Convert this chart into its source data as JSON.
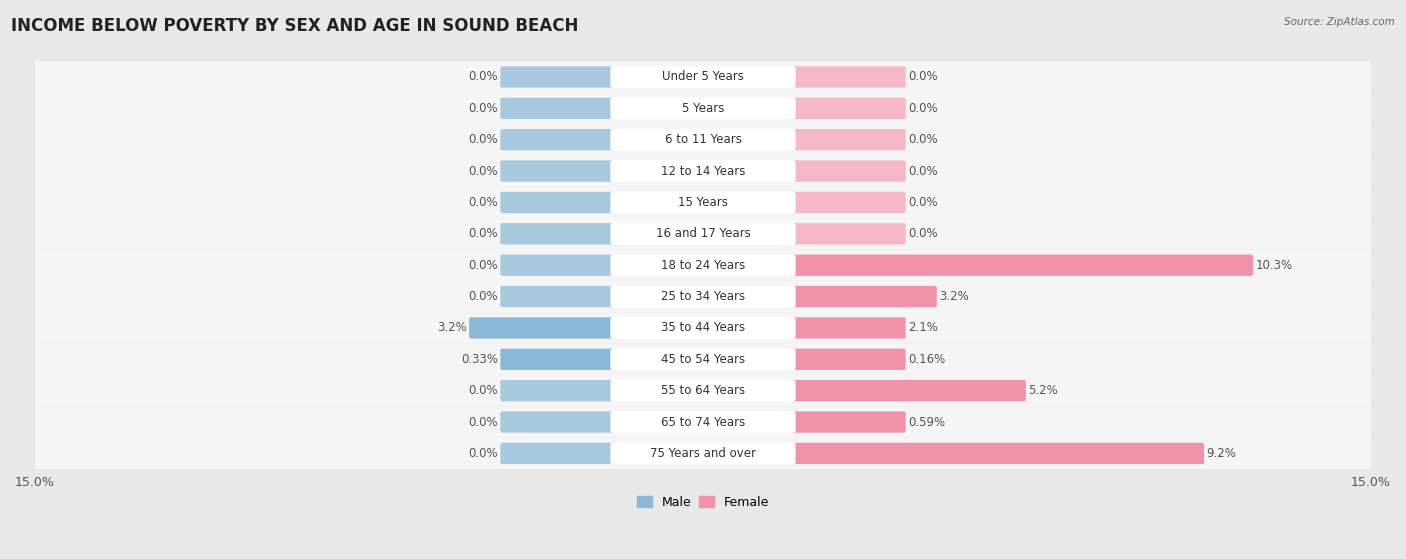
{
  "title": "INCOME BELOW POVERTY BY SEX AND AGE IN SOUND BEACH",
  "source": "Source: ZipAtlas.com",
  "categories": [
    "Under 5 Years",
    "5 Years",
    "6 to 11 Years",
    "12 to 14 Years",
    "15 Years",
    "16 and 17 Years",
    "18 to 24 Years",
    "25 to 34 Years",
    "35 to 44 Years",
    "45 to 54 Years",
    "55 to 64 Years",
    "65 to 74 Years",
    "75 Years and over"
  ],
  "male": [
    0.0,
    0.0,
    0.0,
    0.0,
    0.0,
    0.0,
    0.0,
    0.0,
    3.2,
    0.33,
    0.0,
    0.0,
    0.0
  ],
  "female": [
    0.0,
    0.0,
    0.0,
    0.0,
    0.0,
    0.0,
    10.3,
    3.2,
    2.1,
    0.16,
    5.2,
    0.59,
    9.2
  ],
  "male_color": "#89b8d8",
  "female_color": "#f093a8",
  "male_color_light": "#a8c8e0",
  "female_color_light": "#f4b8c8",
  "background_color": "#e8e8e8",
  "row_bg_color": "#f5f5f5",
  "label_box_color": "#ffffff",
  "xlim": 15.0,
  "min_bar_width": 2.5,
  "bar_height": 0.58,
  "title_fontsize": 12,
  "label_fontsize": 8.5,
  "cat_fontsize": 8.5,
  "tick_fontsize": 9,
  "legend_fontsize": 9,
  "value_color": "#555555"
}
